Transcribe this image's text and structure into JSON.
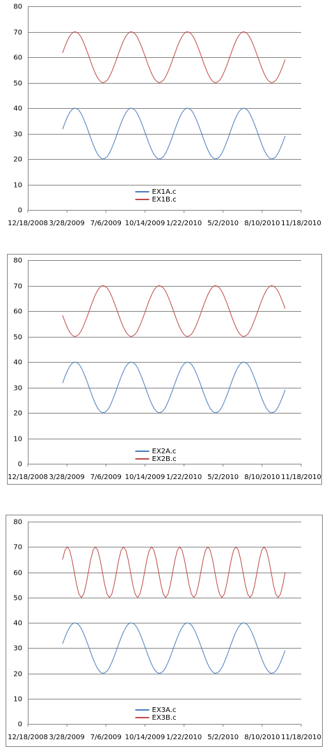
{
  "chart_data": [
    {
      "type": "line",
      "x": [
        "3/17/2009",
        "3/23/2009",
        "3/29/2009",
        "4/4/2009",
        "4/10/2009",
        "4/16/2009",
        "4/22/2009",
        "4/28/2009",
        "5/4/2009",
        "5/10/2009",
        "5/16/2009",
        "5/22/2009",
        "5/28/2009",
        "6/3/2009",
        "6/9/2009",
        "6/15/2009",
        "6/21/2009",
        "6/27/2009",
        "7/3/2009",
        "7/9/2009",
        "7/15/2009",
        "7/21/2009",
        "7/27/2009",
        "8/2/2009",
        "8/8/2009",
        "8/14/2009",
        "8/20/2009",
        "8/26/2009",
        "9/1/2009",
        "9/7/2009",
        "9/13/2009",
        "9/19/2009",
        "9/25/2009",
        "10/1/2009",
        "10/7/2009",
        "10/13/2009",
        "10/19/2009",
        "10/25/2009",
        "10/31/2009",
        "11/6/2009",
        "11/12/2009",
        "11/18/2009",
        "11/24/2009",
        "11/30/2009",
        "12/6/2009",
        "12/12/2009",
        "12/18/2009",
        "12/24/2009",
        "12/30/2009",
        "1/5/2010",
        "1/11/2010",
        "1/17/2010",
        "1/23/2010",
        "1/29/2010",
        "2/4/2010",
        "2/10/2010",
        "2/16/2010",
        "2/22/2010",
        "2/28/2010",
        "3/6/2010",
        "3/12/2010",
        "3/18/2010",
        "3/24/2010",
        "3/30/2010",
        "4/5/2010",
        "4/11/2010",
        "4/17/2010",
        "4/23/2010",
        "4/29/2010",
        "5/5/2010",
        "5/11/2010",
        "5/17/2010",
        "5/23/2010",
        "5/29/2010",
        "6/4/2010",
        "6/10/2010",
        "6/16/2010",
        "6/22/2010",
        "6/28/2010",
        "7/4/2010",
        "7/10/2010",
        "7/16/2010",
        "7/22/2010",
        "7/28/2010",
        "8/3/2010",
        "8/9/2010",
        "8/15/2010",
        "8/21/2010",
        "8/27/2010",
        "9/2/2010",
        "9/8/2010",
        "9/14/2010",
        "9/20/2010",
        "9/26/2010",
        "10/2/2010",
        "10/8/2010"
      ],
      "series": [
        {
          "name": "EX1A.c",
          "color": "#4a7ebb",
          "values": [
            31.7,
            34.2,
            36.4,
            38.2,
            39.4,
            40,
            39.8,
            39.1,
            37.7,
            35.7,
            33.4,
            30.9,
            28.3,
            25.8,
            23.6,
            21.8,
            20.6,
            20,
            20.2,
            20.9,
            22.3,
            24.3,
            26.6,
            29.1,
            31.7,
            34.2,
            36.4,
            38.2,
            39.4,
            40,
            39.8,
            39.1,
            37.7,
            35.7,
            33.4,
            30.9,
            28.3,
            25.8,
            23.6,
            21.8,
            20.6,
            20,
            20.2,
            20.9,
            22.3,
            24.3,
            26.6,
            29.1,
            31.7,
            34.2,
            36.4,
            38.2,
            39.4,
            40,
            39.8,
            39.1,
            37.7,
            35.7,
            33.4,
            30.9,
            28.3,
            25.8,
            23.6,
            21.8,
            20.6,
            20,
            20.2,
            20.9,
            22.3,
            24.3,
            26.6,
            29.1,
            31.7,
            34.2,
            36.4,
            38.2,
            39.4,
            40,
            39.8,
            39.1,
            37.7,
            35.7,
            33.4,
            30.9,
            28.3,
            25.8,
            23.6,
            21.8,
            20.6,
            20,
            20.2,
            20.9,
            22.3,
            24.3,
            26.6,
            29.1
          ]
        },
        {
          "name": "EX1B.c",
          "color": "#be4b48",
          "values": [
            61.7,
            64.2,
            66.4,
            68.2,
            69.4,
            70,
            69.8,
            69.1,
            67.7,
            65.7,
            63.4,
            60.9,
            58.3,
            55.8,
            53.6,
            51.8,
            50.6,
            50,
            50.2,
            50.9,
            52.3,
            54.3,
            56.6,
            59.1,
            61.7,
            64.2,
            66.4,
            68.2,
            69.4,
            70,
            69.8,
            69.1,
            67.7,
            65.7,
            63.4,
            60.9,
            58.3,
            55.8,
            53.6,
            51.8,
            50.6,
            50,
            50.2,
            50.9,
            52.3,
            54.3,
            56.6,
            59.1,
            61.7,
            64.2,
            66.4,
            68.2,
            69.4,
            70,
            69.8,
            69.1,
            67.7,
            65.7,
            63.4,
            60.9,
            58.3,
            55.8,
            53.6,
            51.8,
            50.6,
            50,
            50.2,
            50.9,
            52.3,
            54.3,
            56.6,
            59.1,
            61.7,
            64.2,
            66.4,
            68.2,
            69.4,
            70,
            69.8,
            69.1,
            67.7,
            65.7,
            63.4,
            60.9,
            58.3,
            55.8,
            53.6,
            51.8,
            50.6,
            50,
            50.2,
            50.9,
            52.3,
            54.3,
            56.6,
            59.1
          ]
        }
      ],
      "xlim": [
        "12/18/2008",
        "11/18/2010"
      ],
      "xticks": [
        "12/18/2008",
        "3/28/2009",
        "7/6/2009",
        "10/14/2009",
        "1/22/2010",
        "5/2/2010",
        "8/10/2010",
        "11/18/2010"
      ],
      "ylim": [
        0,
        80
      ],
      "yticks": [
        0,
        10,
        20,
        30,
        40,
        50,
        60,
        70,
        80
      ],
      "grid": true,
      "legend": "bottom"
    },
    {
      "type": "line",
      "x": [
        "3/17/2009",
        "3/23/2009",
        "3/29/2009",
        "4/4/2009",
        "4/10/2009",
        "4/16/2009",
        "4/22/2009",
        "4/28/2009",
        "5/4/2009",
        "5/10/2009",
        "5/16/2009",
        "5/22/2009",
        "5/28/2009",
        "6/3/2009",
        "6/9/2009",
        "6/15/2009",
        "6/21/2009",
        "6/27/2009",
        "7/3/2009",
        "7/9/2009",
        "7/15/2009",
        "7/21/2009",
        "7/27/2009",
        "8/2/2009",
        "8/8/2009",
        "8/14/2009",
        "8/20/2009",
        "8/26/2009",
        "9/1/2009",
        "9/7/2009",
        "9/13/2009",
        "9/19/2009",
        "9/25/2009",
        "10/1/2009",
        "10/7/2009",
        "10/13/2009",
        "10/19/2009",
        "10/25/2009",
        "10/31/2009",
        "11/6/2009",
        "11/12/2009",
        "11/18/2009",
        "11/24/2009",
        "11/30/2009",
        "12/6/2009",
        "12/12/2009",
        "12/18/2009",
        "12/24/2009",
        "12/30/2009",
        "1/5/2010",
        "1/11/2010",
        "1/17/2010",
        "1/23/2010",
        "1/29/2010",
        "2/4/2010",
        "2/10/2010",
        "2/16/2010",
        "2/22/2010",
        "2/28/2010",
        "3/6/2010",
        "3/12/2010",
        "3/18/2010",
        "3/24/2010",
        "3/30/2010",
        "4/5/2010",
        "4/11/2010",
        "4/17/2010",
        "4/23/2010",
        "4/29/2010",
        "5/5/2010",
        "5/11/2010",
        "5/17/2010",
        "5/23/2010",
        "5/29/2010",
        "6/4/2010",
        "6/10/2010",
        "6/16/2010",
        "6/22/2010",
        "6/28/2010",
        "7/4/2010",
        "7/10/2010",
        "7/16/2010",
        "7/22/2010",
        "7/28/2010",
        "8/3/2010",
        "8/9/2010",
        "8/15/2010",
        "8/21/2010",
        "8/27/2010",
        "9/2/2010",
        "9/8/2010",
        "9/14/2010",
        "9/20/2010",
        "9/26/2010",
        "10/2/2010",
        "10/8/2010"
      ],
      "series": [
        {
          "name": "EX2A.c",
          "color": "#4a7ebb",
          "values": [
            31.7,
            34.2,
            36.4,
            38.2,
            39.4,
            40,
            39.8,
            39.1,
            37.7,
            35.7,
            33.4,
            30.9,
            28.3,
            25.8,
            23.6,
            21.8,
            20.6,
            20,
            20.2,
            20.9,
            22.3,
            24.3,
            26.6,
            29.1,
            31.7,
            34.2,
            36.4,
            38.2,
            39.4,
            40,
            39.8,
            39.1,
            37.7,
            35.7,
            33.4,
            30.9,
            28.3,
            25.8,
            23.6,
            21.8,
            20.6,
            20,
            20.2,
            20.9,
            22.3,
            24.3,
            26.6,
            29.1,
            31.7,
            34.2,
            36.4,
            38.2,
            39.4,
            40,
            39.8,
            39.1,
            37.7,
            35.7,
            33.4,
            30.9,
            28.3,
            25.8,
            23.6,
            21.8,
            20.6,
            20,
            20.2,
            20.9,
            22.3,
            24.3,
            26.6,
            29.1,
            31.7,
            34.2,
            36.4,
            38.2,
            39.4,
            40,
            39.8,
            39.1,
            37.7,
            35.7,
            33.4,
            30.9,
            28.3,
            25.8,
            23.6,
            21.8,
            20.6,
            20,
            20.2,
            20.9,
            22.3,
            24.3,
            26.6,
            29.1
          ]
        },
        {
          "name": "EX2B.c",
          "color": "#be4b48",
          "values": [
            58.3,
            55.8,
            53.6,
            51.8,
            50.6,
            50,
            50.2,
            50.9,
            52.3,
            54.3,
            56.6,
            59.1,
            61.7,
            64.2,
            66.4,
            68.2,
            69.4,
            70,
            69.8,
            69.1,
            67.7,
            65.7,
            63.4,
            60.9,
            58.3,
            55.8,
            53.6,
            51.8,
            50.6,
            50,
            50.2,
            50.9,
            52.3,
            54.3,
            56.6,
            59.1,
            61.7,
            64.2,
            66.4,
            68.2,
            69.4,
            70,
            69.8,
            69.1,
            67.7,
            65.7,
            63.4,
            60.9,
            58.3,
            55.8,
            53.6,
            51.8,
            50.6,
            50,
            50.2,
            50.9,
            52.3,
            54.3,
            56.6,
            59.1,
            61.7,
            64.2,
            66.4,
            68.2,
            69.4,
            70,
            69.8,
            69.1,
            67.7,
            65.7,
            63.4,
            60.9,
            58.3,
            55.8,
            53.6,
            51.8,
            50.6,
            50,
            50.2,
            50.9,
            52.3,
            54.3,
            56.6,
            59.1,
            61.7,
            64.2,
            66.4,
            68.2,
            69.4,
            70,
            69.8,
            69.1,
            67.7,
            65.7,
            63.4,
            60.9
          ]
        }
      ],
      "xlim": [
        "12/18/2008",
        "11/18/2010"
      ],
      "xticks": [
        "12/18/2008",
        "3/28/2009",
        "7/6/2009",
        "10/14/2009",
        "1/22/2010",
        "5/2/2010",
        "8/10/2010",
        "11/18/2010"
      ],
      "ylim": [
        0,
        80
      ],
      "yticks": [
        0,
        10,
        20,
        30,
        40,
        50,
        60,
        70,
        80
      ],
      "grid": true,
      "legend": "bottom"
    },
    {
      "type": "line",
      "x": [
        "3/17/2009",
        "3/23/2009",
        "3/29/2009",
        "4/4/2009",
        "4/10/2009",
        "4/16/2009",
        "4/22/2009",
        "4/28/2009",
        "5/4/2009",
        "5/10/2009",
        "5/16/2009",
        "5/22/2009",
        "5/28/2009",
        "6/3/2009",
        "6/9/2009",
        "6/15/2009",
        "6/21/2009",
        "6/27/2009",
        "7/3/2009",
        "7/9/2009",
        "7/15/2009",
        "7/21/2009",
        "7/27/2009",
        "8/2/2009",
        "8/8/2009",
        "8/14/2009",
        "8/20/2009",
        "8/26/2009",
        "9/1/2009",
        "9/7/2009",
        "9/13/2009",
        "9/19/2009",
        "9/25/2009",
        "10/1/2009",
        "10/7/2009",
        "10/13/2009",
        "10/19/2009",
        "10/25/2009",
        "10/31/2009",
        "11/6/2009",
        "11/12/2009",
        "11/18/2009",
        "11/24/2009",
        "11/30/2009",
        "12/6/2009",
        "12/12/2009",
        "12/18/2009",
        "12/24/2009",
        "12/30/2009",
        "1/5/2010",
        "1/11/2010",
        "1/17/2010",
        "1/23/2010",
        "1/29/2010",
        "2/4/2010",
        "2/10/2010",
        "2/16/2010",
        "2/22/2010",
        "2/28/2010",
        "3/6/2010",
        "3/12/2010",
        "3/18/2010",
        "3/24/2010",
        "3/30/2010",
        "4/5/2010",
        "4/11/2010",
        "4/17/2010",
        "4/23/2010",
        "4/29/2010",
        "5/5/2010",
        "5/11/2010",
        "5/17/2010",
        "5/23/2010",
        "5/29/2010",
        "6/4/2010",
        "6/10/2010",
        "6/16/2010",
        "6/22/2010",
        "6/28/2010",
        "7/4/2010",
        "7/10/2010",
        "7/16/2010",
        "7/22/2010",
        "7/28/2010",
        "8/3/2010",
        "8/9/2010",
        "8/15/2010",
        "8/21/2010",
        "8/27/2010",
        "9/2/2010",
        "9/8/2010",
        "9/14/2010",
        "9/20/2010",
        "9/26/2010",
        "10/2/2010",
        "10/8/2010"
      ],
      "series": [
        {
          "name": "EX3A.c",
          "color": "#4a7ebb",
          "values": [
            31.7,
            34.2,
            36.4,
            38.2,
            39.4,
            40,
            39.8,
            39.1,
            37.7,
            35.7,
            33.4,
            30.9,
            28.3,
            25.8,
            23.6,
            21.8,
            20.6,
            20,
            20.2,
            20.9,
            22.3,
            24.3,
            26.6,
            29.1,
            31.7,
            34.2,
            36.4,
            38.2,
            39.4,
            40,
            39.8,
            39.1,
            37.7,
            35.7,
            33.4,
            30.9,
            28.3,
            25.8,
            23.6,
            21.8,
            20.6,
            20,
            20.2,
            20.9,
            22.3,
            24.3,
            26.6,
            29.1,
            31.7,
            34.2,
            36.4,
            38.2,
            39.4,
            40,
            39.8,
            39.1,
            37.7,
            35.7,
            33.4,
            30.9,
            28.3,
            25.8,
            23.6,
            21.8,
            20.6,
            20,
            20.2,
            20.9,
            22.3,
            24.3,
            26.6,
            29.1,
            31.7,
            34.2,
            36.4,
            38.2,
            39.4,
            40,
            39.8,
            39.1,
            37.7,
            35.7,
            33.4,
            30.9,
            28.3,
            25.8,
            23.6,
            21.8,
            20.6,
            20,
            20.2,
            20.9,
            22.3,
            24.3,
            26.6,
            29.1
          ]
        },
        {
          "name": "EX3B.c",
          "color": "#be4b48",
          "values": [
            65,
            68.7,
            70,
            68.7,
            65,
            60,
            55,
            51.3,
            50,
            51.3,
            55,
            60,
            65,
            68.7,
            70,
            68.7,
            65,
            60,
            55,
            51.3,
            50,
            51.3,
            55,
            60,
            65,
            68.7,
            70,
            68.7,
            65,
            60,
            55,
            51.3,
            50,
            51.3,
            55,
            60,
            65,
            68.7,
            70,
            68.7,
            65,
            60,
            55,
            51.3,
            50,
            51.3,
            55,
            60,
            65,
            68.7,
            70,
            68.7,
            65,
            60,
            55,
            51.3,
            50,
            51.3,
            55,
            60,
            65,
            68.7,
            70,
            68.7,
            65,
            60,
            55,
            51.3,
            50,
            51.3,
            55,
            60,
            65,
            68.7,
            70,
            68.7,
            65,
            60,
            55,
            51.3,
            50,
            51.3,
            55,
            60,
            65,
            68.7,
            70,
            68.7,
            65,
            60,
            55,
            51.3,
            50,
            51.3,
            55,
            60
          ]
        }
      ],
      "xlim": [
        "12/18/2008",
        "11/18/2010"
      ],
      "xticks": [
        "12/18/2008",
        "3/28/2009",
        "7/6/2009",
        "10/14/2009",
        "1/22/2010",
        "5/2/2010",
        "8/10/2010",
        "11/18/2010"
      ],
      "ylim": [
        0,
        80
      ],
      "yticks": [
        0,
        10,
        20,
        30,
        40,
        50,
        60,
        70,
        80
      ],
      "grid": true,
      "legend": "bottom"
    }
  ]
}
